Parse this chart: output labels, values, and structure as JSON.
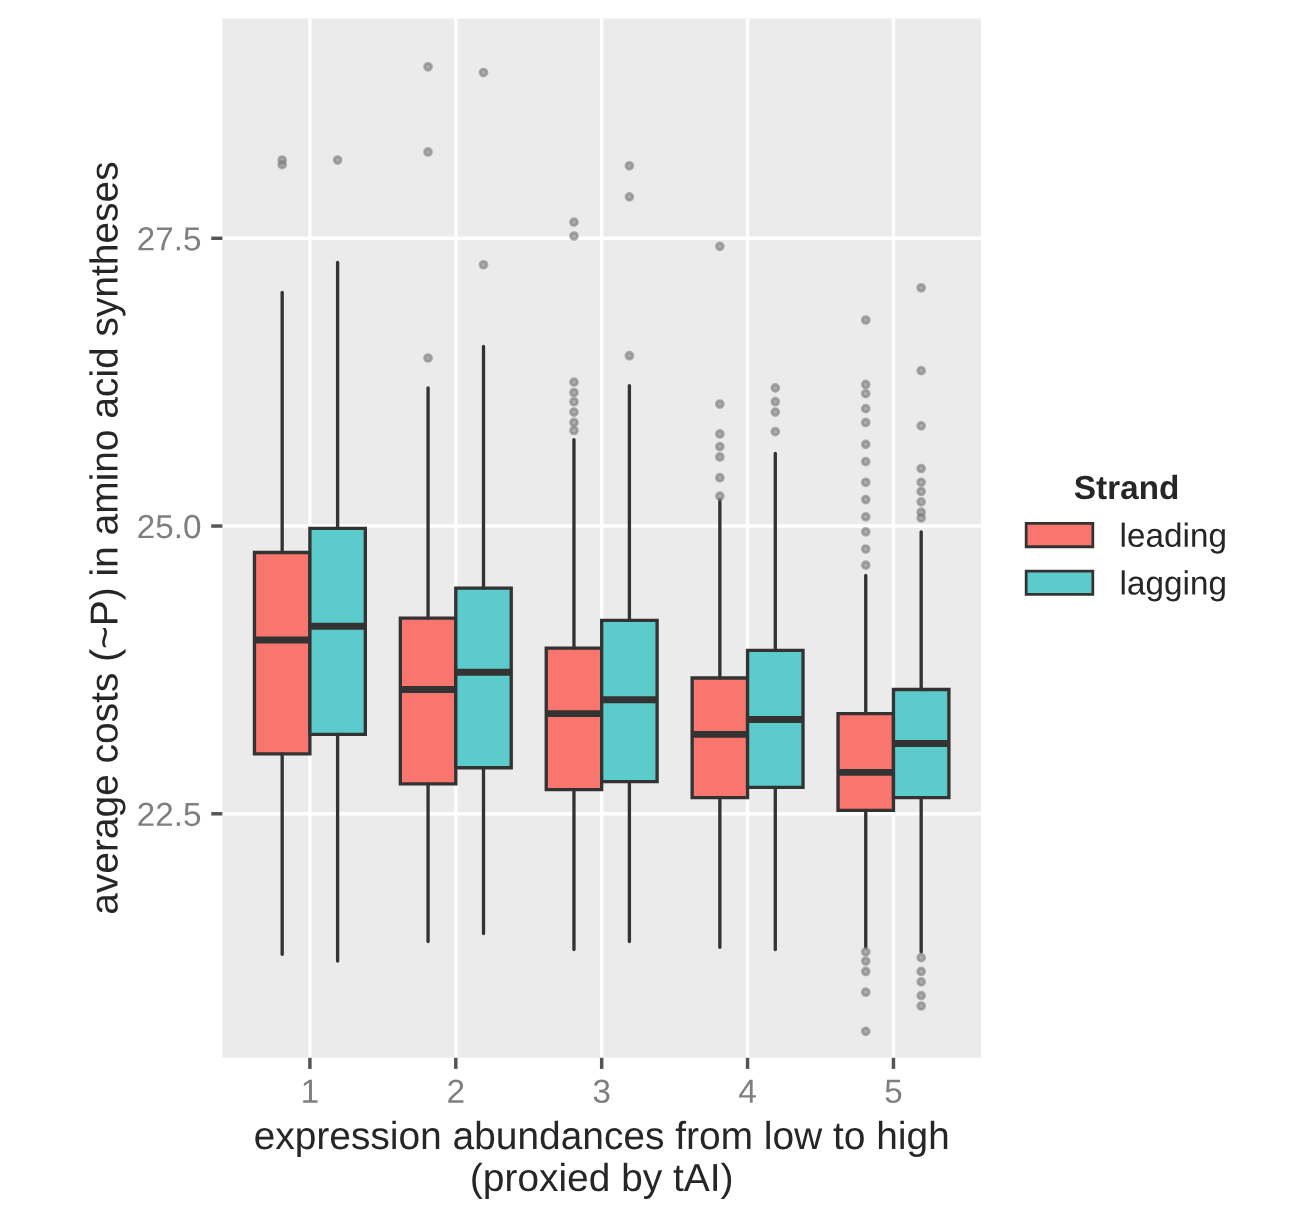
{
  "chart_data": {
    "type": "box",
    "xlabel": "expression abundances from low to high\n(proxied by tAI)",
    "ylabel": "average costs (~P) in amino acid syntheses",
    "legend_title": "Strand",
    "legend": "right",
    "grid": true,
    "categories": [
      "1",
      "2",
      "3",
      "4",
      "5"
    ],
    "ylim": [
      20.38,
      29.41
    ],
    "yticks": [
      22.5,
      {
        "value": 25,
        "label": "25.0"
      },
      27.5
    ],
    "series": [
      {
        "name": "leading",
        "color": "#f8766d",
        "boxes": [
          {
            "low": 21.28,
            "q1": 23.02,
            "median": 24.01,
            "q3": 24.77,
            "high": 27.03,
            "outliers": [
              28.18,
              28.14
            ]
          },
          {
            "low": 21.39,
            "q1": 22.76,
            "median": 23.58,
            "q3": 24.2,
            "high": 26.2,
            "outliers": [
              28.99,
              28.25,
              26.46
            ]
          },
          {
            "low": 21.32,
            "q1": 22.71,
            "median": 23.37,
            "q3": 23.94,
            "high": 25.75,
            "outliers": [
              27.64,
              27.52,
              26.25,
              26.16,
              26.08,
              25.99,
              25.9,
              25.83
            ]
          },
          {
            "low": 21.34,
            "q1": 22.64,
            "median": 23.19,
            "q3": 23.68,
            "high": 25.23,
            "outliers": [
              27.43,
              26.06,
              25.8,
              25.69,
              25.6,
              25.42,
              25.26
            ]
          },
          {
            "low": 21.34,
            "q1": 22.53,
            "median": 22.86,
            "q3": 23.37,
            "high": 24.57,
            "outliers": [
              26.79,
              26.23,
              26.15,
              26.02,
              25.9,
              25.71,
              25.56,
              25.38,
              25.23,
              25.08,
              24.95,
              24.8,
              24.66,
              21.3,
              21.22,
              21.13,
              20.95,
              20.61
            ]
          }
        ]
      },
      {
        "name": "lagging",
        "color": "#5ccbcc",
        "boxes": [
          {
            "low": 21.22,
            "q1": 23.19,
            "median": 24.13,
            "q3": 24.98,
            "high": 27.29,
            "outliers": [
              28.18
            ]
          },
          {
            "low": 21.46,
            "q1": 22.9,
            "median": 23.73,
            "q3": 24.46,
            "high": 26.56,
            "outliers": [
              28.94,
              27.27
            ]
          },
          {
            "low": 21.39,
            "q1": 22.78,
            "median": 23.49,
            "q3": 24.18,
            "high": 26.22,
            "outliers": [
              28.13,
              27.86,
              26.48
            ]
          },
          {
            "low": 21.32,
            "q1": 22.73,
            "median": 23.32,
            "q3": 23.92,
            "high": 25.63,
            "outliers": [
              26.2,
              26.08,
              25.99,
              25.82
            ]
          },
          {
            "low": 21.3,
            "q1": 22.64,
            "median": 23.11,
            "q3": 23.58,
            "high": 24.95,
            "outliers": [
              27.07,
              26.35,
              25.87,
              25.5,
              25.38,
              25.3,
              25.21,
              25.12,
              25.07,
              21.25,
              21.13,
              21.04,
              20.92,
              20.83
            ]
          }
        ]
      }
    ]
  }
}
